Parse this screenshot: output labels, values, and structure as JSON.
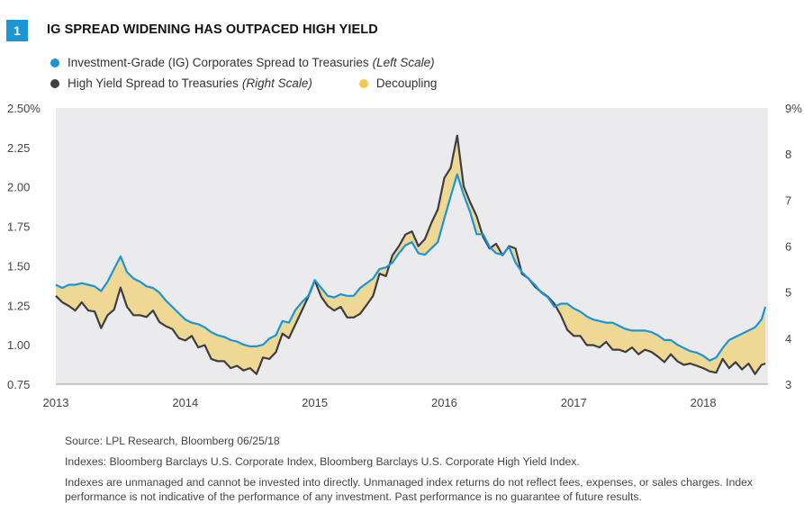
{
  "figure": {
    "number": "1",
    "title": "IG SPREAD WIDENING HAS OUTPACED HIGH YIELD"
  },
  "legend": {
    "ig": {
      "label": "Investment-Grade (IG) Corporates Spread to Treasuries",
      "scale": "(Left Scale)",
      "color": "#1a96d4"
    },
    "hy": {
      "label": "High Yield Spread to Treasuries",
      "scale": "(Right Scale)",
      "color": "#3d3d42"
    },
    "decoupling": {
      "label": "Decoupling",
      "color": "#f2c84b"
    }
  },
  "footer": {
    "source": "Source: LPL Research, Bloomberg   06/25/18",
    "indexes": "Indexes: Bloomberg Barclays U.S. Corporate Index, Bloomberg Barclays U.S. Corporate High Yield Index.",
    "disclaimer_1": "Indexes are unmanaged and cannot be invested into directly. Unmanaged index returns do not reflect fees, expenses, or sales charges. Index",
    "disclaimer_2": "performance is not indicative of the performance of any investment. Past performance is no guarantee of future results."
  },
  "chart_data": {
    "type": "line",
    "title": "IG SPREAD WIDENING HAS OUTPACED HIGH YIELD",
    "x_ticks": [
      "2013",
      "2014",
      "2015",
      "2016",
      "2017",
      "2018"
    ],
    "x_range": [
      2013.0,
      2018.5
    ],
    "left_axis": {
      "ticks": [
        "0.75",
        "1.00",
        "1.25",
        "1.50",
        "1.75",
        "2.00",
        "2.25",
        "2.50%"
      ],
      "range": [
        0.75,
        2.5
      ]
    },
    "right_axis": {
      "ticks": [
        "3",
        "4",
        "5",
        "6",
        "7",
        "8",
        "9%"
      ],
      "range": [
        3,
        9
      ]
    },
    "grid": false,
    "plot_background": "#ebebee",
    "series": [
      {
        "name": "Investment-Grade (IG) Corporates Spread to Treasuries",
        "axis": "left",
        "color": "#1a96d4",
        "x": [
          2013.0,
          2013.05,
          2013.1,
          2013.15,
          2013.2,
          2013.25,
          2013.3,
          2013.35,
          2013.4,
          2013.45,
          2013.5,
          2013.55,
          2013.6,
          2013.65,
          2013.7,
          2013.75,
          2013.8,
          2013.85,
          2013.9,
          2013.95,
          2014.0,
          2014.05,
          2014.1,
          2014.15,
          2014.2,
          2014.25,
          2014.3,
          2014.35,
          2014.4,
          2014.45,
          2014.5,
          2014.55,
          2014.6,
          2014.65,
          2014.7,
          2014.75,
          2014.8,
          2014.85,
          2014.9,
          2014.95,
          2015.0,
          2015.05,
          2015.1,
          2015.15,
          2015.2,
          2015.25,
          2015.3,
          2015.35,
          2015.4,
          2015.45,
          2015.5,
          2015.55,
          2015.6,
          2015.65,
          2015.7,
          2015.75,
          2015.8,
          2015.85,
          2015.9,
          2015.95,
          2016.0,
          2016.05,
          2016.1,
          2016.15,
          2016.2,
          2016.25,
          2016.3,
          2016.35,
          2016.4,
          2016.45,
          2016.5,
          2016.55,
          2016.6,
          2016.65,
          2016.7,
          2016.75,
          2016.8,
          2016.85,
          2016.9,
          2016.95,
          2017.0,
          2017.05,
          2017.1,
          2017.15,
          2017.2,
          2017.25,
          2017.3,
          2017.35,
          2017.4,
          2017.45,
          2017.5,
          2017.55,
          2017.6,
          2017.65,
          2017.7,
          2017.75,
          2017.8,
          2017.85,
          2017.9,
          2017.95,
          2018.0,
          2018.05,
          2018.1,
          2018.15,
          2018.2,
          2018.25,
          2018.3,
          2018.35,
          2018.4,
          2018.45,
          2018.48
        ],
        "values": [
          1.38,
          1.36,
          1.38,
          1.38,
          1.39,
          1.38,
          1.37,
          1.34,
          1.4,
          1.48,
          1.56,
          1.46,
          1.42,
          1.4,
          1.37,
          1.36,
          1.33,
          1.28,
          1.24,
          1.2,
          1.16,
          1.14,
          1.13,
          1.11,
          1.08,
          1.06,
          1.05,
          1.03,
          1.02,
          1.0,
          0.99,
          0.99,
          1.0,
          1.04,
          1.06,
          1.15,
          1.14,
          1.22,
          1.27,
          1.31,
          1.41,
          1.36,
          1.31,
          1.3,
          1.32,
          1.31,
          1.31,
          1.36,
          1.39,
          1.42,
          1.48,
          1.49,
          1.52,
          1.58,
          1.63,
          1.65,
          1.58,
          1.57,
          1.61,
          1.65,
          1.8,
          1.94,
          2.08,
          1.95,
          1.84,
          1.7,
          1.7,
          1.62,
          1.58,
          1.57,
          1.62,
          1.52,
          1.46,
          1.42,
          1.38,
          1.33,
          1.3,
          1.24,
          1.26,
          1.26,
          1.23,
          1.21,
          1.18,
          1.16,
          1.15,
          1.14,
          1.14,
          1.12,
          1.1,
          1.09,
          1.09,
          1.09,
          1.08,
          1.06,
          1.03,
          1.03,
          1.0,
          0.98,
          0.96,
          0.95,
          0.93,
          0.9,
          0.92,
          0.98,
          1.03,
          1.05,
          1.07,
          1.09,
          1.11,
          1.16,
          1.24
        ]
      },
      {
        "name": "High Yield Spread to Treasuries",
        "axis": "right",
        "color": "#3d3d42",
        "x": [
          2013.0,
          2013.05,
          2013.1,
          2013.15,
          2013.2,
          2013.25,
          2013.3,
          2013.35,
          2013.4,
          2013.45,
          2013.5,
          2013.55,
          2013.6,
          2013.65,
          2013.7,
          2013.75,
          2013.8,
          2013.85,
          2013.9,
          2013.95,
          2014.0,
          2014.05,
          2014.1,
          2014.15,
          2014.2,
          2014.25,
          2014.3,
          2014.35,
          2014.4,
          2014.45,
          2014.5,
          2014.55,
          2014.6,
          2014.65,
          2014.7,
          2014.75,
          2014.8,
          2014.85,
          2014.9,
          2014.95,
          2015.0,
          2015.05,
          2015.1,
          2015.15,
          2015.2,
          2015.25,
          2015.3,
          2015.35,
          2015.4,
          2015.45,
          2015.5,
          2015.55,
          2015.6,
          2015.65,
          2015.7,
          2015.75,
          2015.8,
          2015.85,
          2015.9,
          2015.95,
          2016.0,
          2016.05,
          2016.1,
          2016.15,
          2016.2,
          2016.25,
          2016.3,
          2016.35,
          2016.4,
          2016.45,
          2016.5,
          2016.55,
          2016.6,
          2016.65,
          2016.7,
          2016.75,
          2016.8,
          2016.85,
          2016.9,
          2016.95,
          2017.0,
          2017.05,
          2017.1,
          2017.15,
          2017.2,
          2017.25,
          2017.3,
          2017.35,
          2017.4,
          2017.45,
          2017.5,
          2017.55,
          2017.6,
          2017.65,
          2017.7,
          2017.75,
          2017.8,
          2017.85,
          2017.9,
          2017.95,
          2018.0,
          2018.05,
          2018.1,
          2018.15,
          2018.2,
          2018.25,
          2018.3,
          2018.35,
          2018.4,
          2018.45,
          2018.48
        ],
        "values": [
          4.92,
          4.78,
          4.7,
          4.6,
          4.78,
          4.6,
          4.58,
          4.22,
          4.5,
          4.62,
          5.1,
          4.68,
          4.5,
          4.5,
          4.46,
          4.6,
          4.35,
          4.26,
          4.2,
          4.0,
          3.95,
          4.05,
          3.8,
          3.85,
          3.55,
          3.5,
          3.5,
          3.35,
          3.4,
          3.3,
          3.35,
          3.22,
          3.58,
          3.55,
          3.7,
          4.1,
          4.0,
          4.3,
          4.6,
          4.9,
          5.25,
          4.9,
          4.7,
          4.6,
          4.68,
          4.45,
          4.45,
          4.53,
          4.72,
          4.92,
          5.4,
          5.35,
          5.8,
          6.0,
          6.25,
          6.32,
          6.0,
          6.15,
          6.5,
          6.8,
          7.48,
          7.7,
          8.4,
          7.3,
          6.95,
          6.65,
          6.2,
          5.95,
          6.05,
          5.8,
          6.0,
          5.95,
          5.4,
          5.3,
          5.12,
          5.0,
          4.9,
          4.75,
          4.5,
          4.18,
          4.05,
          4.05,
          3.85,
          3.85,
          3.8,
          3.92,
          3.75,
          3.75,
          3.7,
          3.8,
          3.65,
          3.75,
          3.7,
          3.6,
          3.48,
          3.65,
          3.5,
          3.42,
          3.45,
          3.4,
          3.35,
          3.28,
          3.25,
          3.55,
          3.35,
          3.48,
          3.32,
          3.45,
          3.22,
          3.42,
          3.45
        ]
      }
    ]
  }
}
